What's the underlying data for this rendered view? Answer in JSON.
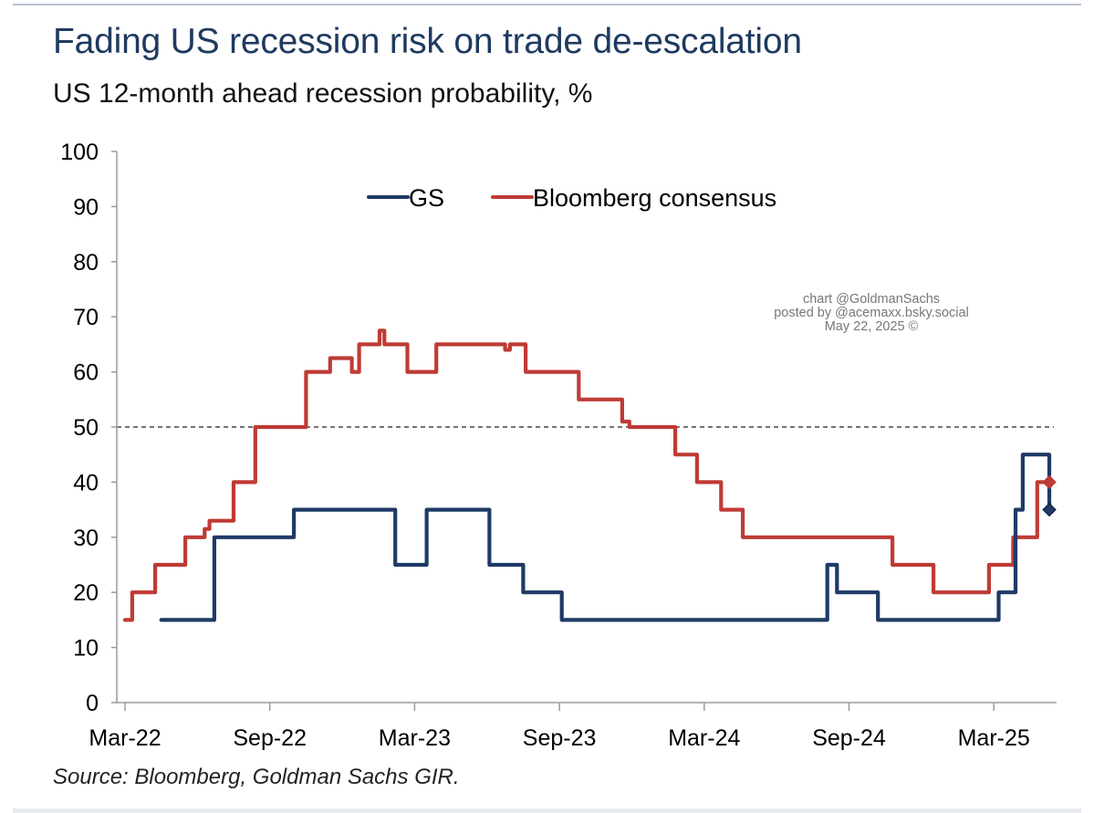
{
  "header": {
    "title": "Fading US recession risk on trade de-escalation",
    "subtitle": "US 12-month ahead recession probability, %"
  },
  "footer": {
    "source": "Source: Bloomberg, Goldman Sachs GIR."
  },
  "watermark": {
    "lines": [
      "chart @GoldmanSachs",
      "posted by @acemaxx.bsky.social",
      "May 22, 2025 ©"
    ]
  },
  "chart_data": {
    "type": "line",
    "step": true,
    "title": "Fading US recession risk on trade de-escalation",
    "subtitle": "US 12-month ahead recession probability, %",
    "xlabel": "",
    "ylabel": "",
    "ylim": [
      0,
      100
    ],
    "yticks": [
      0,
      10,
      20,
      30,
      40,
      50,
      60,
      70,
      80,
      90,
      100
    ],
    "x_unit": "months since Mar-22",
    "xlim": [
      0,
      39.5
    ],
    "xticks": [
      {
        "pos": 0,
        "label": "Mar-22"
      },
      {
        "pos": 6,
        "label": "Sep-22"
      },
      {
        "pos": 12,
        "label": "Mar-23"
      },
      {
        "pos": 18,
        "label": "Sep-23"
      },
      {
        "pos": 24,
        "label": "Mar-24"
      },
      {
        "pos": 30,
        "label": "Sep-24"
      },
      {
        "pos": 36,
        "label": "Mar-25"
      }
    ],
    "reference_line": {
      "y": 50,
      "style": "dashed"
    },
    "legend": {
      "placement": "top-center"
    },
    "series": [
      {
        "name": "GS",
        "color": "#1f3a66",
        "end_marker": "diamond",
        "points": [
          [
            1.5,
            15
          ],
          [
            3.7,
            30
          ],
          [
            7.0,
            35
          ],
          [
            11.2,
            25
          ],
          [
            12.5,
            35
          ],
          [
            15.1,
            25
          ],
          [
            16.5,
            20
          ],
          [
            18.1,
            15
          ],
          [
            29.1,
            25
          ],
          [
            29.5,
            20
          ],
          [
            31.2,
            15
          ],
          [
            36.2,
            20
          ],
          [
            36.9,
            35
          ],
          [
            37.2,
            45
          ],
          [
            38.3,
            35
          ]
        ]
      },
      {
        "name": "Bloomberg consensus",
        "color": "#bf3b35",
        "end_marker": "diamond",
        "points": [
          [
            0,
            15
          ],
          [
            0.3,
            20
          ],
          [
            1.25,
            25
          ],
          [
            2.5,
            30
          ],
          [
            3.3,
            31.5
          ],
          [
            3.5,
            33
          ],
          [
            4.5,
            40
          ],
          [
            5.4,
            50
          ],
          [
            7.5,
            60
          ],
          [
            8.5,
            62.5
          ],
          [
            9.4,
            60
          ],
          [
            9.7,
            65
          ],
          [
            10.55,
            67.5
          ],
          [
            10.75,
            65
          ],
          [
            11.7,
            60
          ],
          [
            12.9,
            65
          ],
          [
            15.75,
            64
          ],
          [
            15.95,
            65
          ],
          [
            16.6,
            60
          ],
          [
            18.8,
            55
          ],
          [
            20.6,
            51
          ],
          [
            20.9,
            50
          ],
          [
            22.8,
            45
          ],
          [
            23.7,
            40
          ],
          [
            24.7,
            35
          ],
          [
            25.6,
            30
          ],
          [
            31.8,
            25
          ],
          [
            33.5,
            20
          ],
          [
            35.8,
            25
          ],
          [
            36.8,
            30
          ],
          [
            37.8,
            40
          ],
          [
            38.3,
            40
          ]
        ]
      }
    ]
  }
}
